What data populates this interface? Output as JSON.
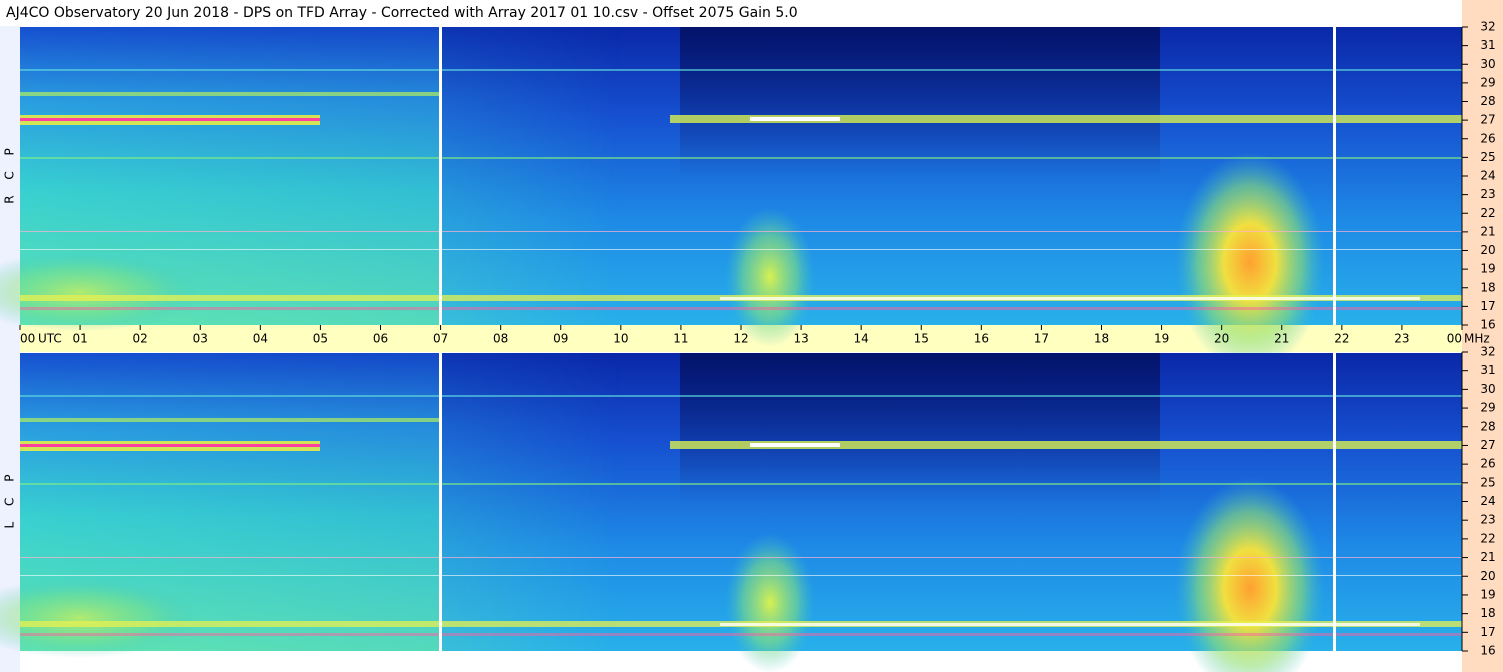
{
  "header": {
    "title": "AJ4CO Observatory  20 Jun 2018  -  DPS on TFD Array  -  Corrected with Array 2017 01 10.csv  -  Offset 2075  Gain 5.0"
  },
  "chart_data": {
    "type": "spectrogram",
    "panels": [
      {
        "label": "R C P"
      },
      {
        "label": "L C P"
      }
    ],
    "x_label": "UTC",
    "y_label": "MHz",
    "xlim": [
      0,
      24
    ],
    "xticks": [
      {
        "value": 0,
        "label": "00"
      },
      {
        "value": 1,
        "label": "01"
      },
      {
        "value": 2,
        "label": "02"
      },
      {
        "value": 3,
        "label": "03"
      },
      {
        "value": 4,
        "label": "04"
      },
      {
        "value": 5,
        "label": "05"
      },
      {
        "value": 6,
        "label": "06"
      },
      {
        "value": 7,
        "label": "07"
      },
      {
        "value": 8,
        "label": "08"
      },
      {
        "value": 9,
        "label": "09"
      },
      10,
      11,
      12,
      13,
      14,
      15,
      16,
      17,
      18,
      19,
      20,
      21,
      22,
      23,
      {
        "value": 24,
        "label": "00"
      }
    ],
    "ylim": [
      16,
      32
    ],
    "yticks": [
      16,
      17,
      18,
      19,
      20,
      21,
      22,
      23,
      24,
      25,
      26,
      27,
      28,
      29,
      30,
      31,
      32
    ]
  }
}
